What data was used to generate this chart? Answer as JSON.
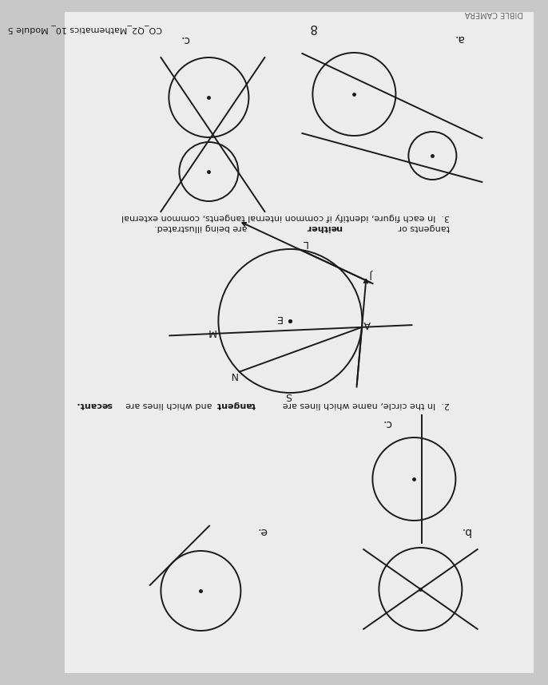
{
  "bg_color": "#c8c8c8",
  "page_bg": "#ececec",
  "line_color": "#1a1a1a",
  "text_color": "#1a1a1a",
  "header_text": "DIBLE CAMERA",
  "footer_left": "CO_Q2_Mathematics 10_ Module 5",
  "footer_num": "8",
  "section2_text1": "2.  In the circle, name which lines are ",
  "section2_bold1": "tangent",
  "section2_text2": " and which lines are ",
  "section2_bold2": "secant.",
  "section3_text1": "3.  In each figure, identify if common internal tangents, common external",
  "section3_text2": "tangents or ",
  "section3_bold": "neither",
  "section3_text3": " are being illustrated.",
  "sub_a": "a.",
  "sub_b": "b.",
  "sub_c": "c.",
  "sub_e": "e."
}
